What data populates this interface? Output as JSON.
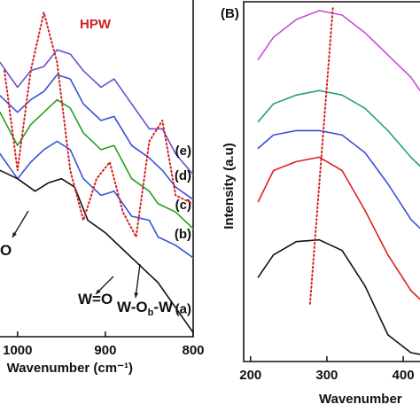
{
  "chart_data": [
    {
      "type": "line",
      "x_label": "Wavenumber (cm⁻¹)",
      "xlim": [
        1020,
        800
      ],
      "xticks": [
        1000,
        900,
        800
      ],
      "ylim": [
        0,
        405
      ],
      "series": [
        {
          "name": "(e)",
          "color": "#6b4fd0",
          "x": [
            1020,
            1000,
            985,
            970,
            955,
            940,
            925,
            905,
            890,
            870,
            850,
            835,
            820,
            800
          ],
          "values": [
            330,
            300,
            320,
            325,
            345,
            340,
            320,
            300,
            310,
            280,
            250,
            250,
            220,
            195
          ]
        },
        {
          "name": "(d)",
          "color": "#3a4fd8",
          "x": [
            1020,
            1000,
            985,
            970,
            955,
            940,
            925,
            905,
            890,
            870,
            850,
            835,
            820,
            800
          ],
          "values": [
            290,
            270,
            285,
            295,
            315,
            310,
            280,
            260,
            265,
            230,
            215,
            200,
            180,
            165
          ]
        },
        {
          "name": "(c)",
          "color": "#22a022",
          "x": [
            1020,
            1000,
            985,
            970,
            955,
            940,
            925,
            905,
            890,
            870,
            850,
            840,
            820,
            800
          ],
          "values": [
            270,
            230,
            255,
            270,
            285,
            275,
            245,
            225,
            230,
            190,
            175,
            160,
            150,
            130
          ]
        },
        {
          "name": "(b)",
          "color": "#2f56d6",
          "x": [
            1020,
            1000,
            985,
            970,
            955,
            940,
            925,
            905,
            890,
            870,
            850,
            840,
            820,
            800
          ],
          "values": [
            220,
            190,
            210,
            225,
            235,
            225,
            190,
            170,
            175,
            145,
            140,
            120,
            110,
            95
          ]
        },
        {
          "name": "(a)",
          "color": "#111111",
          "x": [
            1020,
            1000,
            980,
            965,
            950,
            935,
            920,
            900,
            880,
            860,
            840,
            820,
            800
          ],
          "values": [
            200,
            190,
            175,
            185,
            190,
            180,
            140,
            125,
            105,
            85,
            65,
            35,
            5
          ]
        },
        {
          "name": "HPW",
          "color": "#d42020",
          "style": "dotted",
          "x": [
            1015,
            1000,
            985,
            970,
            955,
            940,
            925,
            910,
            895,
            880,
            865,
            850,
            835,
            820,
            800
          ],
          "values": [
            320,
            200,
            320,
            390,
            330,
            200,
            140,
            190,
            210,
            150,
            120,
            235,
            260,
            170,
            160
          ]
        }
      ],
      "annotations": [
        {
          "text": "O"
        },
        {
          "text": "W=O"
        },
        {
          "text": "W-O",
          "sub": "b",
          "tail": "-W"
        }
      ]
    },
    {
      "type": "line",
      "panel": "(B)",
      "x_label": "Wavenumber",
      "y_label": "Intensity (a.u)",
      "xlim": [
        191,
        422
      ],
      "xticks": [
        200,
        300,
        400
      ],
      "ylim": [
        0,
        405
      ],
      "series": [
        {
          "color": "#c050d8",
          "x": [
            210,
            230,
            260,
            290,
            320,
            350,
            380,
            410,
            422
          ],
          "values": [
            340,
            365,
            385,
            395,
            390,
            370,
            345,
            320,
            305
          ]
        },
        {
          "color": "#25a080",
          "x": [
            210,
            230,
            260,
            290,
            320,
            350,
            380,
            410,
            422
          ],
          "values": [
            270,
            290,
            300,
            305,
            300,
            285,
            260,
            230,
            220
          ]
        },
        {
          "color": "#3a4fd8",
          "x": [
            210,
            230,
            260,
            290,
            320,
            350,
            380,
            410,
            422
          ],
          "values": [
            240,
            255,
            260,
            260,
            255,
            235,
            200,
            160,
            150
          ]
        },
        {
          "color": "#e02020",
          "x": [
            210,
            230,
            260,
            290,
            320,
            350,
            380,
            410,
            422
          ],
          "values": [
            180,
            215,
            225,
            230,
            215,
            170,
            120,
            80,
            70
          ]
        },
        {
          "color": "#111111",
          "x": [
            210,
            230,
            260,
            290,
            320,
            350,
            380,
            410,
            422
          ],
          "values": [
            95,
            120,
            135,
            137,
            125,
            85,
            30,
            10,
            8
          ]
        },
        {
          "color": "#d42020",
          "style": "dotted",
          "x": [
            278,
            308
          ],
          "values": [
            65,
            400
          ]
        }
      ]
    }
  ]
}
